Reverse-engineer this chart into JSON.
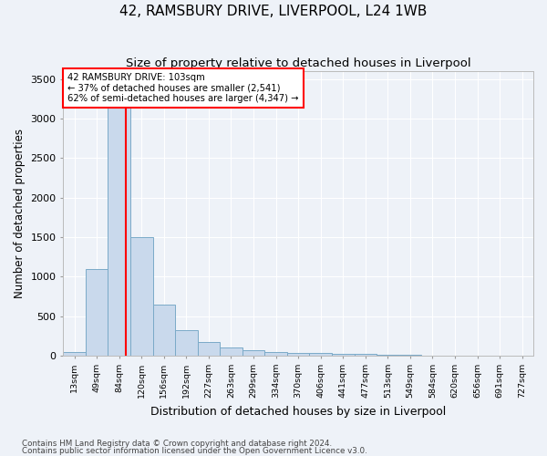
{
  "title": "42, RAMSBURY DRIVE, LIVERPOOL, L24 1WB",
  "subtitle": "Size of property relative to detached houses in Liverpool",
  "xlabel": "Distribution of detached houses by size in Liverpool",
  "ylabel": "Number of detached properties",
  "footnote1": "Contains HM Land Registry data © Crown copyright and database right 2024.",
  "footnote2": "Contains public sector information licensed under the Open Government Licence v3.0.",
  "bin_labels": [
    "13sqm",
    "49sqm",
    "84sqm",
    "120sqm",
    "156sqm",
    "192sqm",
    "227sqm",
    "263sqm",
    "299sqm",
    "334sqm",
    "370sqm",
    "406sqm",
    "441sqm",
    "477sqm",
    "513sqm",
    "549sqm",
    "584sqm",
    "620sqm",
    "656sqm",
    "691sqm",
    "727sqm"
  ],
  "bar_heights": [
    50,
    1100,
    3430,
    1500,
    650,
    320,
    175,
    100,
    65,
    50,
    40,
    35,
    25,
    18,
    12,
    8,
    5,
    3,
    2,
    1,
    0
  ],
  "bar_color": "#c9d9ec",
  "bar_edge_color": "#7aaac8",
  "red_line_x": 2.3,
  "annotation_label": "42 RAMSBURY DRIVE: 103sqm",
  "annotation_line1": "← 37% of detached houses are smaller (2,541)",
  "annotation_line2": "62% of semi-detached houses are larger (4,347) →",
  "ylim": [
    0,
    3600
  ],
  "yticks": [
    0,
    500,
    1000,
    1500,
    2000,
    2500,
    3000,
    3500
  ],
  "bg_color": "#eef2f8",
  "plot_bg_color": "#eef2f8",
  "grid_color": "#ffffff",
  "title_fontsize": 11,
  "subtitle_fontsize": 9.5,
  "xlabel_fontsize": 9,
  "ylabel_fontsize": 8.5
}
